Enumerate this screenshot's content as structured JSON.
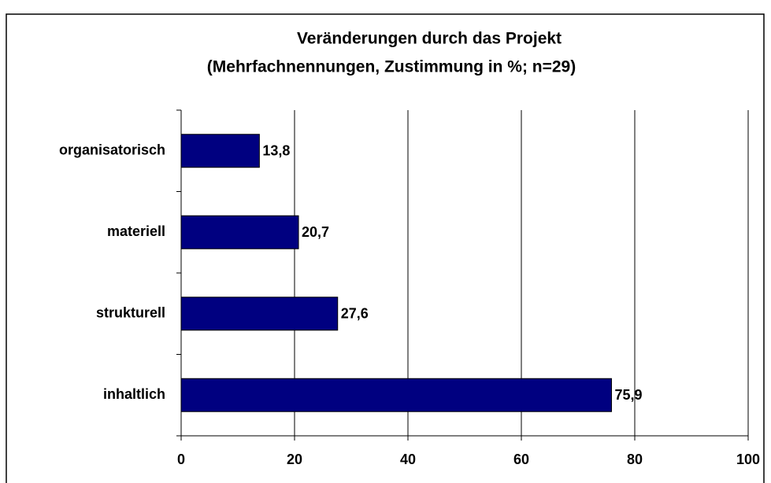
{
  "chart_data": {
    "type": "hbar",
    "title": "Veränderungen durch das Projekt",
    "subtitle": "(Mehrfachnennungen, Zustimmung in %; n=29)",
    "categories": [
      "organisatorisch",
      "materiell",
      "strukturell",
      "inhaltlich"
    ],
    "values": [
      13.8,
      20.7,
      27.6,
      75.9
    ],
    "value_labels": [
      "13,8",
      "20,7",
      "27,6",
      "75,9"
    ],
    "color": "#000080",
    "xlim": [
      0,
      100
    ],
    "xticks": [
      0,
      20,
      40,
      60,
      80,
      100
    ],
    "grid": true
  }
}
